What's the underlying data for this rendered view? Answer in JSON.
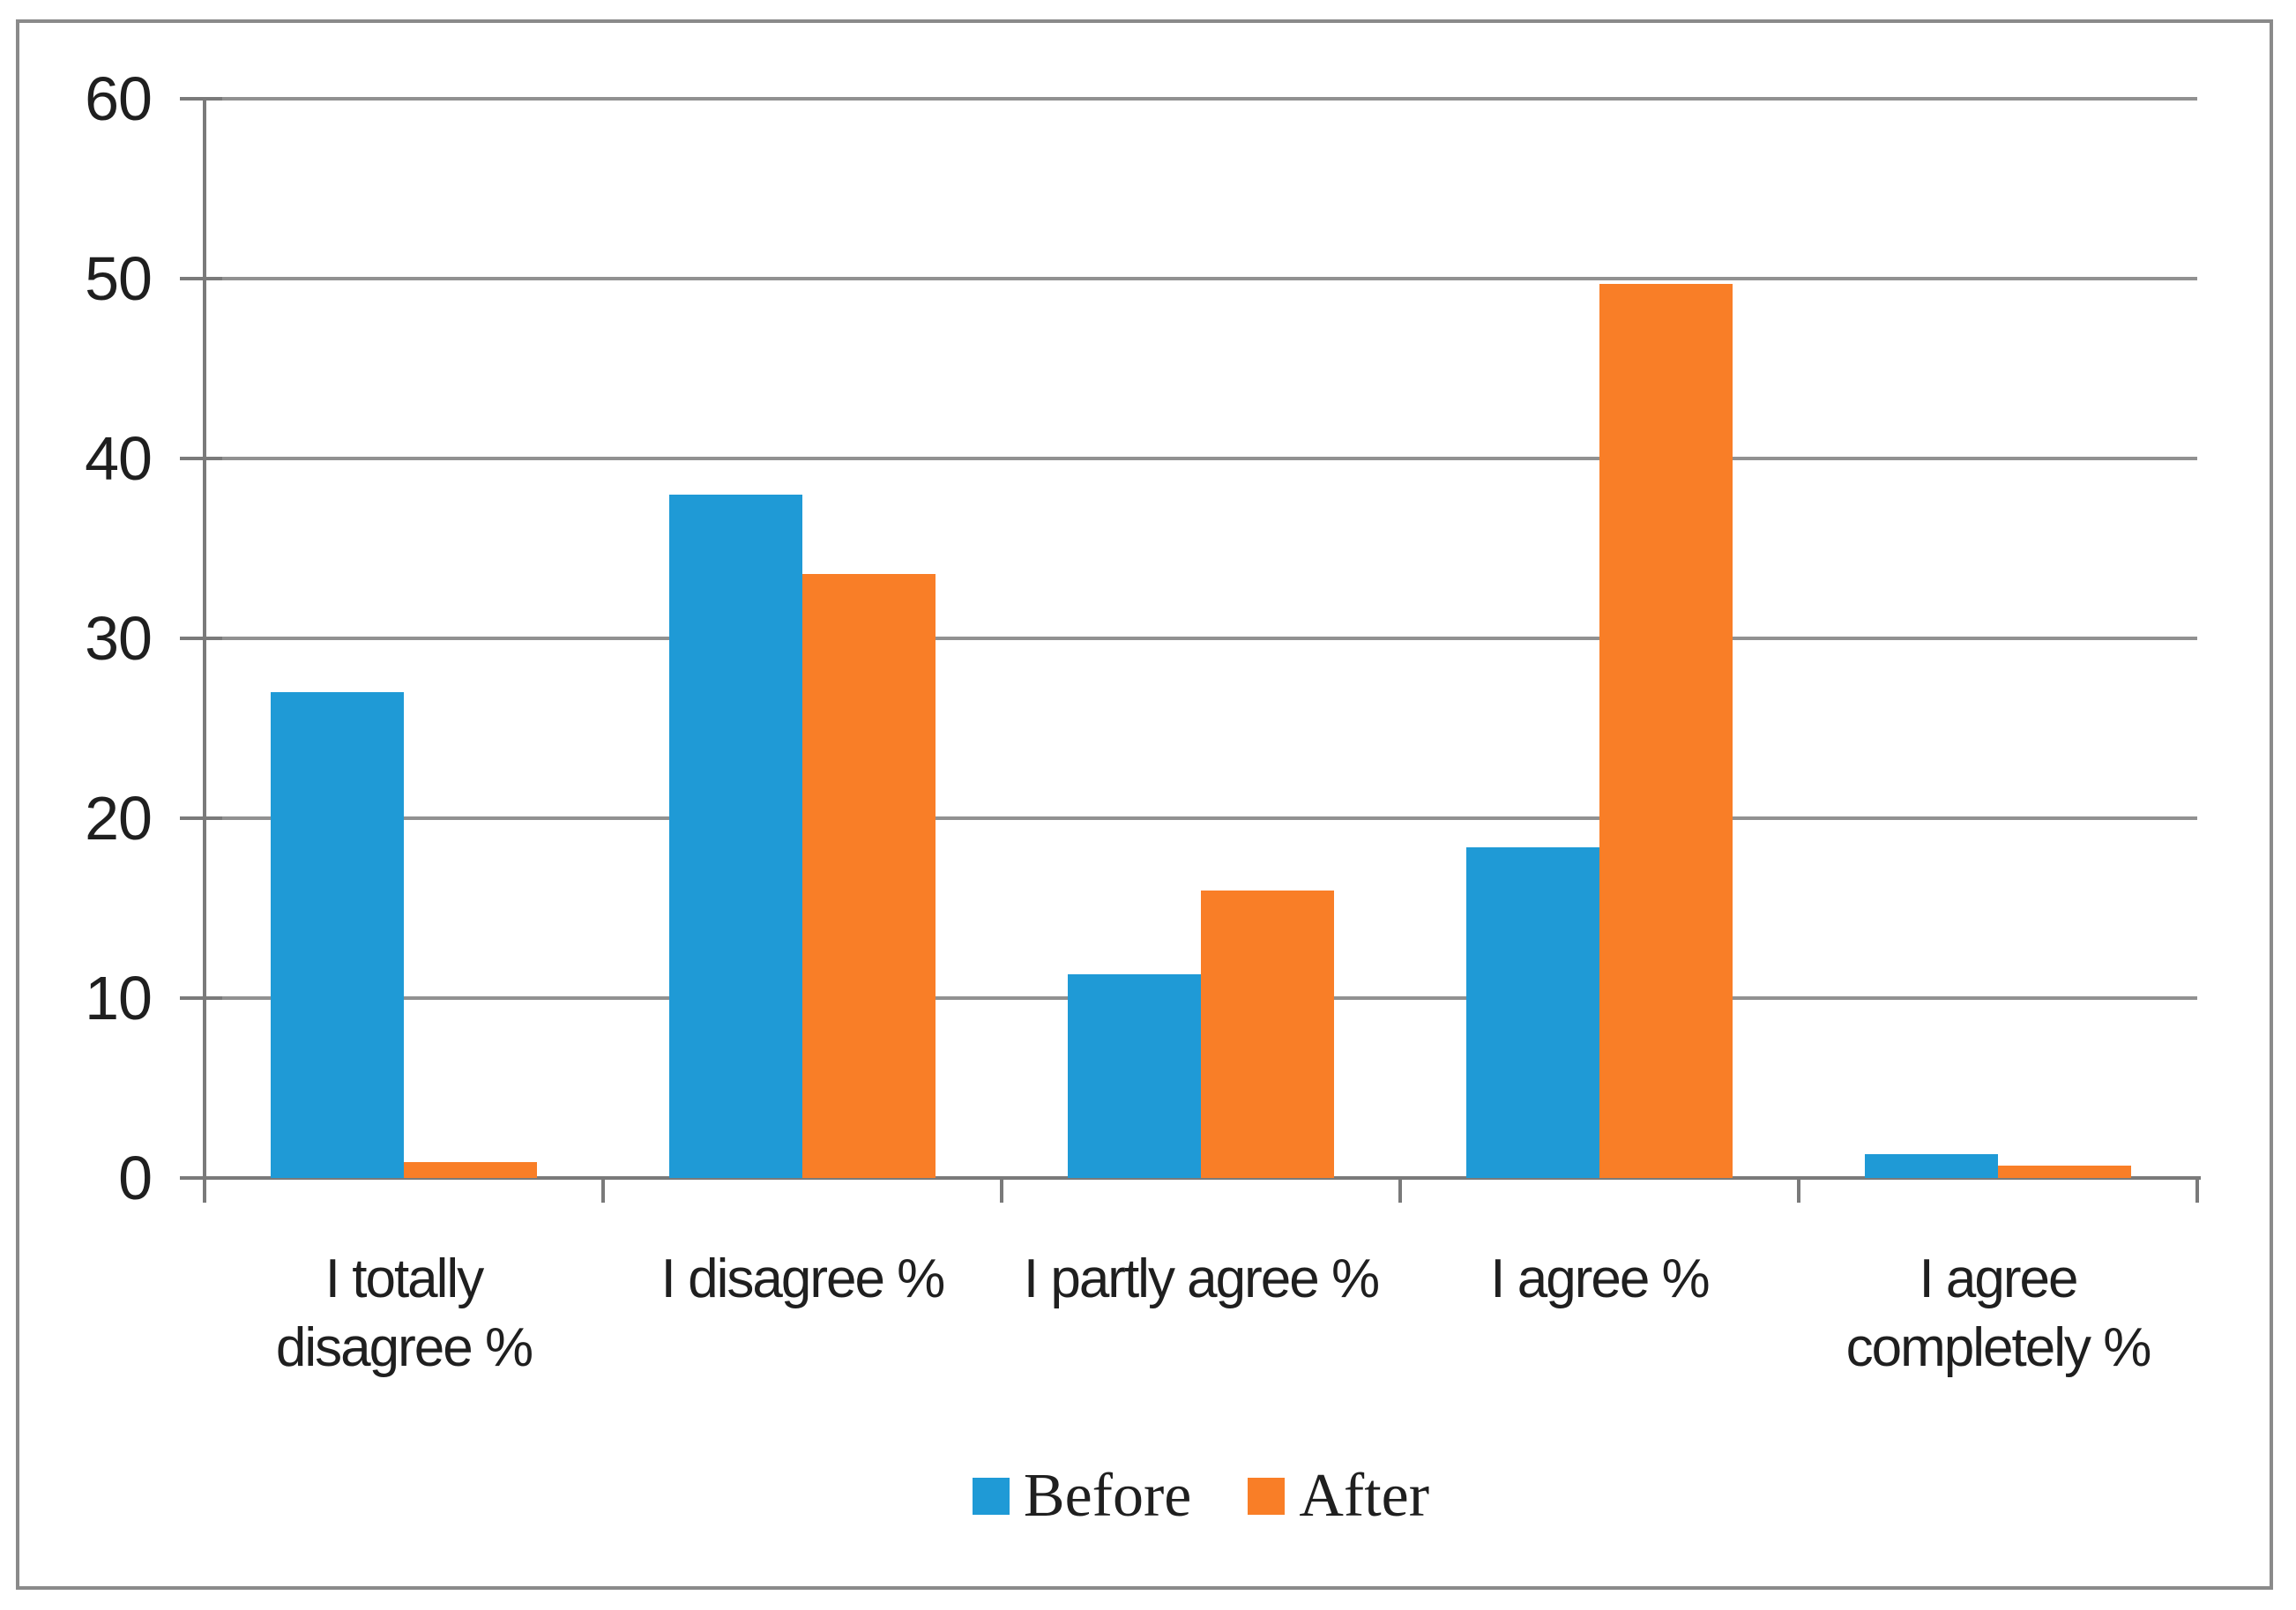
{
  "chart_data": {
    "type": "bar",
    "title": "",
    "xlabel": "",
    "ylabel": "",
    "categories": [
      "I totally disagree %",
      "I disagree %",
      "I partly agree %",
      "I agree %",
      "I agree completely %"
    ],
    "series": [
      {
        "name": "Before",
        "color": "#1f9ad6",
        "values": [
          27,
          38,
          11.3,
          18.4,
          1.3
        ]
      },
      {
        "name": "After",
        "color": "#f97e27",
        "values": [
          0.9,
          33.6,
          16,
          49.7,
          0.7
        ]
      }
    ],
    "y_axis": {
      "min": 0,
      "max": 60,
      "ticks": [
        0,
        10,
        20,
        30,
        40,
        50,
        60
      ]
    },
    "grid": true,
    "legend_position": "bottom"
  },
  "style": {
    "bar_blue": "#1f9ad6",
    "bar_orange": "#f97e27",
    "gridline_color": "#919191",
    "axis_color": "#7a7a7a",
    "frame_border_color": "#8a8a8a",
    "text_color": "#1f1f1f",
    "background_color": "#ffffff"
  }
}
